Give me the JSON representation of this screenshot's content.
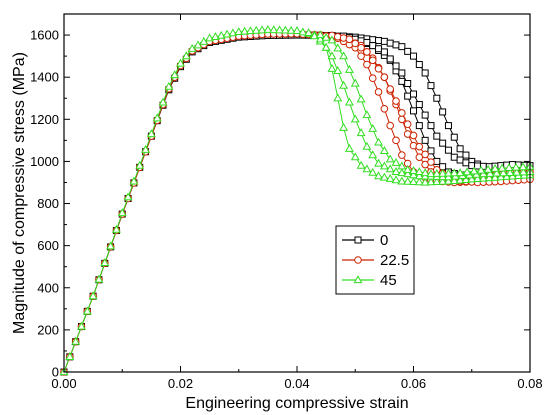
{
  "chart_data": {
    "type": "line",
    "title": "",
    "xlabel": "Engineering compressive strain",
    "ylabel": "Magnitude of compressive stress (MPa)",
    "xlim": [
      0,
      0.08
    ],
    "ylim": [
      0,
      1700
    ],
    "x_ticks": [
      0.0,
      0.02,
      0.04,
      0.06,
      0.08
    ],
    "x_tick_labels": [
      "0.00",
      "0.02",
      "0.04",
      "0.06",
      "0.08"
    ],
    "y_ticks": [
      0,
      200,
      400,
      600,
      800,
      1000,
      1200,
      1400,
      1600
    ],
    "y_tick_labels": [
      "0",
      "200",
      "400",
      "600",
      "800",
      "1000",
      "1200",
      "1400",
      "1600"
    ],
    "grid": false,
    "legend_position": "center-right",
    "series": [
      {
        "name": "0",
        "color": "#000000",
        "marker": "square",
        "curves": [
          [
            [
              0,
              0
            ],
            [
              0.005,
              360
            ],
            [
              0.01,
              750
            ],
            [
              0.015,
              1120
            ],
            [
              0.018,
              1340
            ],
            [
              0.02,
              1450
            ],
            [
              0.022,
              1520
            ],
            [
              0.025,
              1565
            ],
            [
              0.03,
              1590
            ],
            [
              0.035,
              1598
            ],
            [
              0.04,
              1600
            ],
            [
              0.045,
              1598
            ],
            [
              0.05,
              1590
            ],
            [
              0.055,
              1570
            ],
            [
              0.058,
              1545
            ],
            [
              0.06,
              1500
            ],
            [
              0.062,
              1420
            ],
            [
              0.064,
              1300
            ],
            [
              0.066,
              1170
            ],
            [
              0.068,
              1060
            ],
            [
              0.07,
              1000
            ],
            [
              0.072,
              975
            ],
            [
              0.074,
              965
            ],
            [
              0.077,
              965
            ],
            [
              0.08,
              965
            ]
          ],
          [
            [
              0.046,
              1598
            ],
            [
              0.05,
              1580
            ],
            [
              0.053,
              1550
            ],
            [
              0.056,
              1480
            ],
            [
              0.058,
              1380
            ],
            [
              0.06,
              1240
            ],
            [
              0.062,
              1100
            ],
            [
              0.064,
              1000
            ],
            [
              0.066,
              950
            ],
            [
              0.068,
              935
            ],
            [
              0.072,
              935
            ],
            [
              0.076,
              945
            ],
            [
              0.08,
              940
            ]
          ],
          [
            [
              0.048,
              1595
            ],
            [
              0.052,
              1565
            ],
            [
              0.055,
              1520
            ],
            [
              0.058,
              1420
            ],
            [
              0.061,
              1270
            ],
            [
              0.064,
              1120
            ],
            [
              0.067,
              1020
            ],
            [
              0.07,
              980
            ],
            [
              0.073,
              975
            ],
            [
              0.077,
              985
            ],
            [
              0.08,
              980
            ]
          ]
        ]
      },
      {
        "name": "22.5",
        "color": "#cc2200",
        "marker": "circle",
        "curves": [
          [
            [
              0,
              0
            ],
            [
              0.005,
              360
            ],
            [
              0.01,
              750
            ],
            [
              0.015,
              1120
            ],
            [
              0.018,
              1345
            ],
            [
              0.02,
              1455
            ],
            [
              0.022,
              1525
            ],
            [
              0.025,
              1570
            ],
            [
              0.03,
              1595
            ],
            [
              0.035,
              1605
            ],
            [
              0.04,
              1606
            ],
            [
              0.044,
              1600
            ],
            [
              0.048,
              1585
            ],
            [
              0.051,
              1550
            ],
            [
              0.053,
              1490
            ],
            [
              0.055,
              1400
            ],
            [
              0.057,
              1270
            ],
            [
              0.059,
              1130
            ],
            [
              0.061,
              1020
            ],
            [
              0.063,
              950
            ],
            [
              0.066,
              920
            ],
            [
              0.07,
              915
            ],
            [
              0.074,
              935
            ],
            [
              0.08,
              950
            ]
          ],
          [
            [
              0.044,
              1600
            ],
            [
              0.047,
              1585
            ],
            [
              0.05,
              1540
            ],
            [
              0.052,
              1460
            ],
            [
              0.054,
              1330
            ],
            [
              0.056,
              1170
            ],
            [
              0.058,
              1030
            ],
            [
              0.06,
              950
            ],
            [
              0.063,
              910
            ],
            [
              0.067,
              900
            ],
            [
              0.071,
              905
            ],
            [
              0.075,
              920
            ],
            [
              0.08,
              930
            ]
          ],
          [
            [
              0.046,
              1598
            ],
            [
              0.049,
              1580
            ],
            [
              0.052,
              1520
            ],
            [
              0.055,
              1400
            ],
            [
              0.058,
              1230
            ],
            [
              0.061,
              1070
            ],
            [
              0.064,
              960
            ],
            [
              0.067,
              910
            ],
            [
              0.071,
              900
            ],
            [
              0.075,
              905
            ],
            [
              0.08,
              915
            ]
          ]
        ]
      },
      {
        "name": "45",
        "color": "#33dd22",
        "marker": "triangle",
        "curves": [
          [
            [
              0,
              0
            ],
            [
              0.005,
              360
            ],
            [
              0.01,
              755
            ],
            [
              0.015,
              1130
            ],
            [
              0.018,
              1355
            ],
            [
              0.02,
              1465
            ],
            [
              0.022,
              1535
            ],
            [
              0.025,
              1585
            ],
            [
              0.03,
              1615
            ],
            [
              0.035,
              1625
            ],
            [
              0.04,
              1620
            ],
            [
              0.043,
              1600
            ],
            [
              0.045,
              1540
            ],
            [
              0.046,
              1440
            ],
            [
              0.047,
              1300
            ],
            [
              0.048,
              1160
            ],
            [
              0.049,
              1060
            ],
            [
              0.051,
              980
            ],
            [
              0.054,
              930
            ],
            [
              0.058,
              905
            ],
            [
              0.062,
              900
            ],
            [
              0.066,
              905
            ],
            [
              0.07,
              915
            ],
            [
              0.075,
              925
            ],
            [
              0.08,
              935
            ]
          ],
          [
            [
              0.042,
              1610
            ],
            [
              0.044,
              1580
            ],
            [
              0.046,
              1500
            ],
            [
              0.048,
              1360
            ],
            [
              0.05,
              1200
            ],
            [
              0.052,
              1070
            ],
            [
              0.054,
              990
            ],
            [
              0.057,
              950
            ],
            [
              0.061,
              930
            ],
            [
              0.066,
              925
            ],
            [
              0.072,
              940
            ],
            [
              0.08,
              950
            ]
          ],
          [
            [
              0.044,
              1600
            ],
            [
              0.046,
              1575
            ],
            [
              0.048,
              1500
            ],
            [
              0.05,
              1370
            ],
            [
              0.052,
              1220
            ],
            [
              0.054,
              1090
            ],
            [
              0.056,
              1010
            ],
            [
              0.059,
              960
            ],
            [
              0.063,
              940
            ],
            [
              0.068,
              945
            ],
            [
              0.074,
              965
            ],
            [
              0.08,
              975
            ]
          ]
        ]
      }
    ]
  }
}
